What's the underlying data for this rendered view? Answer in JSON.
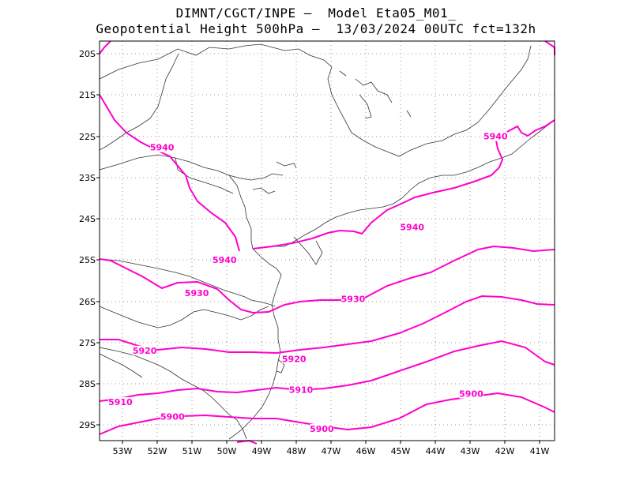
{
  "title": {
    "line1": "DIMNT/CGCT/INPE –  Model Eta05_M01_",
    "line2": "Geopotential Height 500hPa –  13/03/2024 00UTC fct=132h"
  },
  "map": {
    "lon_range": [
      -53.6,
      -40.5
    ],
    "lat_range": [
      -29.4,
      -19.7
    ],
    "lat_ticks": [
      "20S",
      "21S",
      "22S",
      "23S",
      "24S",
      "25S",
      "26S",
      "27S",
      "28S",
      "29S"
    ],
    "lon_ticks": [
      "53W",
      "52W",
      "51W",
      "50W",
      "49W",
      "48W",
      "47W",
      "46W",
      "45W",
      "44W",
      "43W",
      "42W",
      "41W"
    ],
    "contour_color": "#ff00cc",
    "contour_labels": [
      {
        "name": "contour-label-5940-a",
        "text": "5940",
        "lon": -51.8,
        "lat": -22.32
      },
      {
        "name": "contour-label-5940-b",
        "text": "5940",
        "lon": -50.0,
        "lat": -25.05
      },
      {
        "name": "contour-label-5940-c",
        "text": "5940",
        "lon": -44.6,
        "lat": -24.25
      },
      {
        "name": "contour-label-5940-d",
        "text": "5940",
        "lon": -42.2,
        "lat": -22.05
      },
      {
        "name": "contour-label-5930-a",
        "text": "5930",
        "lon": -50.8,
        "lat": -25.85
      },
      {
        "name": "contour-label-5930-b",
        "text": "5930",
        "lon": -46.3,
        "lat": -26.0
      },
      {
        "name": "contour-label-5920-a",
        "text": "5920",
        "lon": -52.3,
        "lat": -27.25
      },
      {
        "name": "contour-label-5920-b",
        "text": "5920",
        "lon": -48.0,
        "lat": -27.45
      },
      {
        "name": "contour-label-5910-a",
        "text": "5910",
        "lon": -53.0,
        "lat": -28.5
      },
      {
        "name": "contour-label-5910-b",
        "text": "5910",
        "lon": -47.8,
        "lat": -28.2
      },
      {
        "name": "contour-label-5900-a",
        "text": "5900",
        "lon": -51.5,
        "lat": -28.85
      },
      {
        "name": "contour-label-5900-b",
        "text": "5900",
        "lon": -47.2,
        "lat": -29.15
      },
      {
        "name": "contour-label-5900-c",
        "text": "5900",
        "lon": -42.9,
        "lat": -28.3
      }
    ]
  }
}
